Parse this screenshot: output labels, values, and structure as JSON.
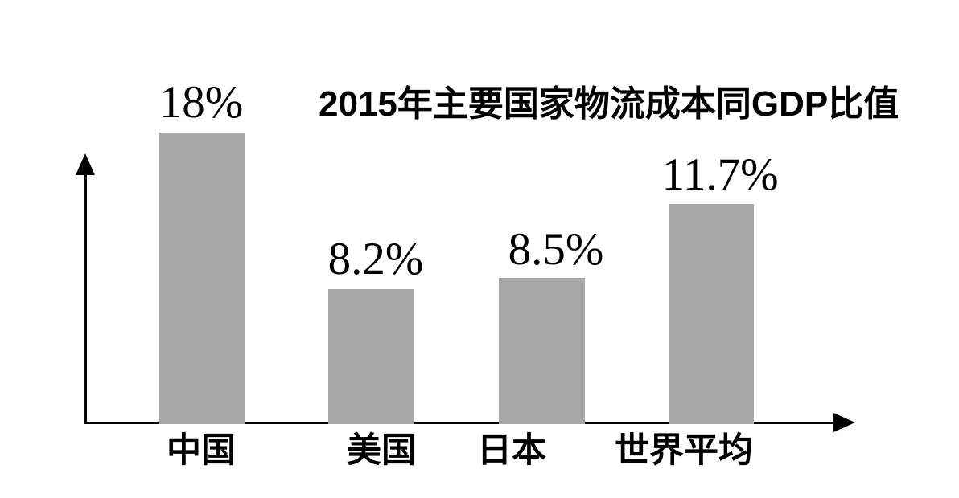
{
  "chart_data": {
    "type": "bar",
    "title": "2015年主要国家物流成本同GDP比值",
    "categories": [
      "中国",
      "美国",
      "日本",
      "世界平均"
    ],
    "values": [
      18,
      8.2,
      8.5,
      11.7
    ],
    "bars": [
      {
        "category": "中国",
        "value": 18,
        "label": "18%"
      },
      {
        "category": "美国",
        "value": 8.2,
        "label": "8.2%"
      },
      {
        "category": "日本",
        "value": 8.5,
        "label": "8.5%"
      },
      {
        "category": "世界平均",
        "value": 11.7,
        "label": "11.7%"
      }
    ],
    "xlabel": "",
    "ylabel": "",
    "ylim": [
      0,
      20
    ],
    "grid": false,
    "legend_position": "none",
    "bar_color": "#a7a7a7",
    "axis_color": "#000000",
    "label_color": "#000000"
  }
}
